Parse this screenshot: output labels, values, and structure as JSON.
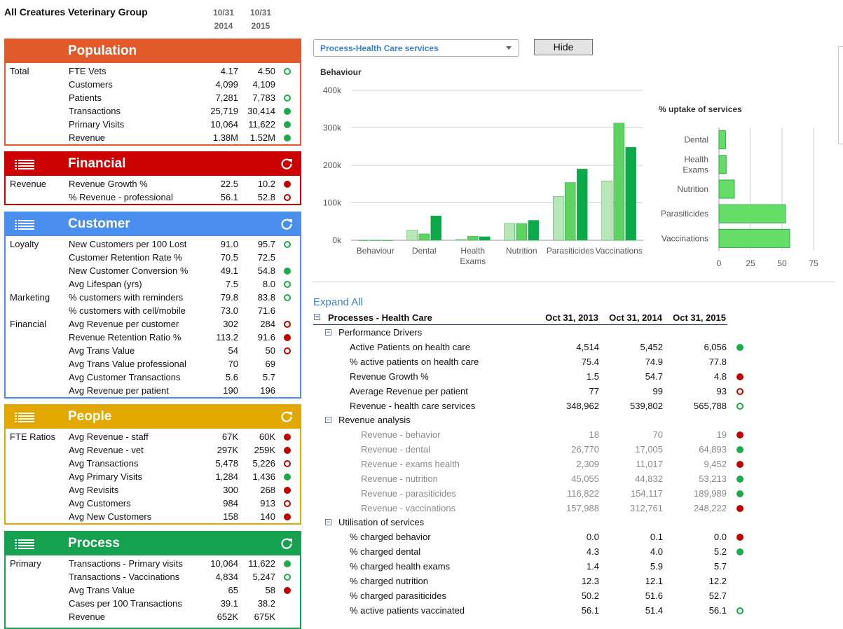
{
  "header": {
    "org_name": "All Creatures Veterinary Group",
    "year_cols": [
      {
        "date": "10/31",
        "year": "2014"
      },
      {
        "date": "10/31",
        "year": "2015"
      }
    ]
  },
  "colors": {
    "population": "#e05a2b",
    "financial": "#cc0000",
    "customer": "#4a8ef0",
    "people": "#e2a800",
    "process": "#15a150",
    "good": "#1aab4b",
    "bad": "#c00000"
  },
  "panels": [
    {
      "key": "population",
      "title": "Population",
      "icons": {
        "menu": false,
        "refresh": false
      },
      "rows": [
        {
          "group": "Total",
          "label": "FTE Vets",
          "v1": "4.17",
          "v2": "4.50",
          "ind": "go"
        },
        {
          "group": "",
          "label": "Customers",
          "v1": "4,099",
          "v2": "4,109",
          "ind": ""
        },
        {
          "group": "",
          "label": "Patients",
          "v1": "7,281",
          "v2": "7,783",
          "ind": "go"
        },
        {
          "group": "",
          "label": "Transactions",
          "v1": "25,719",
          "v2": "30,414",
          "ind": "gf"
        },
        {
          "group": "",
          "label": "Primary Visits",
          "v1": "10,064",
          "v2": "11,622",
          "ind": "gf"
        },
        {
          "group": "",
          "label": "Revenue",
          "v1": "1.38M",
          "v2": "1.52M",
          "ind": "gf"
        }
      ]
    },
    {
      "key": "financial",
      "title": "Financial",
      "icons": {
        "menu": true,
        "refresh": true
      },
      "rows": [
        {
          "group": "Revenue",
          "label": "Revenue Growth %",
          "v1": "22.5",
          "v2": "10.2",
          "ind": "rf"
        },
        {
          "group": "",
          "label": "% Revenue - professional",
          "v1": "56.1",
          "v2": "52.8",
          "ind": "ro"
        }
      ]
    },
    {
      "key": "customer",
      "title": "Customer",
      "icons": {
        "menu": true,
        "refresh": true
      },
      "rows": [
        {
          "group": "Loyalty",
          "label": "New Customers per 100 Lost",
          "v1": "91.0",
          "v2": "95.7",
          "ind": "go"
        },
        {
          "group": "",
          "label": "Customer Retention Rate %",
          "v1": "70.5",
          "v2": "72.5",
          "ind": ""
        },
        {
          "group": "",
          "label": "New Customer Conversion %",
          "v1": "49.1",
          "v2": "54.8",
          "ind": "gf"
        },
        {
          "group": "",
          "label": "Avg Lifespan (yrs)",
          "v1": "7.5",
          "v2": "8.0",
          "ind": "go"
        },
        {
          "group": "Marketing",
          "label": "% customers with reminders",
          "v1": "79.8",
          "v2": "83.8",
          "ind": "go"
        },
        {
          "group": "",
          "label": "% customers with cell/mobile",
          "v1": "73.0",
          "v2": "71.6",
          "ind": ""
        },
        {
          "group": "Financial",
          "label": "Avg Revenue per customer",
          "v1": "302",
          "v2": "284",
          "ind": "ro"
        },
        {
          "group": "",
          "label": "Revenue Retention Ratio %",
          "v1": "113.2",
          "v2": "91.6",
          "ind": "rf"
        },
        {
          "group": "",
          "label": "Avg Trans Value",
          "v1": "54",
          "v2": "50",
          "ind": "ro"
        },
        {
          "group": "",
          "label": "Avg Trans Value professional",
          "v1": "70",
          "v2": "69",
          "ind": ""
        },
        {
          "group": "",
          "label": "Avg Customer Transactions",
          "v1": "5.6",
          "v2": "5.7",
          "ind": ""
        },
        {
          "group": "",
          "label": "Avg Revenue per patient",
          "v1": "190",
          "v2": "196",
          "ind": ""
        }
      ]
    },
    {
      "key": "people",
      "title": "People",
      "icons": {
        "menu": true,
        "refresh": true
      },
      "rows": [
        {
          "group": "FTE Ratios",
          "label": "Avg Revenue - staff",
          "v1": "67K",
          "v2": "60K",
          "ind": "rf"
        },
        {
          "group": "",
          "label": "Avg Revenue - vet",
          "v1": "297K",
          "v2": "259K",
          "ind": "rf"
        },
        {
          "group": "",
          "label": "Avg Transactions",
          "v1": "5,478",
          "v2": "5,226",
          "ind": "ro"
        },
        {
          "group": "",
          "label": "Avg Primary Visits",
          "v1": "1,284",
          "v2": "1,436",
          "ind": "gf"
        },
        {
          "group": "",
          "label": "Avg Revisits",
          "v1": "300",
          "v2": "268",
          "ind": "rf"
        },
        {
          "group": "",
          "label": "Avg Customers",
          "v1": "984",
          "v2": "913",
          "ind": "ro"
        },
        {
          "group": "",
          "label": "Avg New Customers",
          "v1": "158",
          "v2": "140",
          "ind": "rf"
        }
      ]
    },
    {
      "key": "process",
      "title": "Process",
      "icons": {
        "menu": true,
        "refresh": true
      },
      "rows": [
        {
          "group": "Primary",
          "label": "Transactions - Primary visits",
          "v1": "10,064",
          "v2": "11,622",
          "ind": "gf"
        },
        {
          "group": "",
          "label": "Transactions - Vaccinations",
          "v1": "4,834",
          "v2": "5,247",
          "ind": "go"
        },
        {
          "group": "",
          "label": "Avg Trans Value",
          "v1": "65",
          "v2": "58",
          "ind": "rf"
        },
        {
          "group": "",
          "label": "Cases per 100 Transactions",
          "v1": "39.1",
          "v2": "38.2",
          "ind": ""
        },
        {
          "group": "",
          "label": "Revenue",
          "v1": "652K",
          "v2": "675K",
          "ind": ""
        }
      ]
    }
  ],
  "controls": {
    "dropdown_value": "Process-Health Care services",
    "hide_label": "Hide"
  },
  "chart_data": [
    {
      "type": "bar",
      "title": "Behaviour",
      "categories": [
        "Behaviour",
        "Dental",
        "Health Exams",
        "Nutrition",
        "Parasiticides",
        "Vaccinations"
      ],
      "series": [
        {
          "values": [
            18,
            26770,
            2309,
            45055,
            116822,
            157988
          ],
          "color": "#b8e8b8"
        },
        {
          "values": [
            70,
            17005,
            11017,
            44832,
            154117,
            312761
          ],
          "color": "#5fd35f"
        },
        {
          "values": [
            19,
            64893,
            9452,
            53213,
            189989,
            248222
          ],
          "color": "#0aaa4a"
        }
      ],
      "yticks": [
        "0k",
        "100k",
        "200k",
        "300k",
        "400k"
      ],
      "ylim": [
        0,
        400000
      ],
      "grid": true
    },
    {
      "type": "bar",
      "orientation": "horizontal",
      "title": "% uptake of services",
      "categories": [
        "Dental",
        "Health Exams",
        "Nutrition",
        "Parasiticides",
        "Vaccinations"
      ],
      "values": [
        5.2,
        5.7,
        12.2,
        52.7,
        56.1
      ],
      "xticks": [
        "0",
        "25",
        "50",
        "75"
      ],
      "xlim": [
        0,
        75
      ],
      "color": "#66dd66",
      "grid": true
    }
  ],
  "table": {
    "expand_all": "Expand All",
    "title": "Processes - Health Care",
    "columns": [
      "Oct 31, 2013",
      "Oct 31, 2014",
      "Oct 31, 2015"
    ],
    "sections": [
      {
        "title": "Performance Drivers",
        "muted": false,
        "rows": [
          {
            "label": "Active Patients on health care",
            "v": [
              "4,514",
              "5,452",
              "6,056"
            ],
            "ind": "gf"
          },
          {
            "label": "% active patients on health care",
            "v": [
              "75.4",
              "74.9",
              "77.8"
            ],
            "ind": ""
          },
          {
            "label": "Revenue Growth %",
            "v": [
              "1.5",
              "54.7",
              "4.8"
            ],
            "ind": "rf"
          },
          {
            "label": "Average Revenue per patient",
            "v": [
              "77",
              "99",
              "93"
            ],
            "ind": "ro"
          },
          {
            "label": "Revenue - health care services",
            "v": [
              "348,962",
              "539,802",
              "565,788"
            ],
            "ind": "go"
          }
        ]
      },
      {
        "title": "Revenue analysis",
        "muted": true,
        "rows": [
          {
            "label": "Revenue - behavior",
            "v": [
              "18",
              "70",
              "19"
            ],
            "ind": "rf"
          },
          {
            "label": "Revenue - dental",
            "v": [
              "26,770",
              "17,005",
              "64,893"
            ],
            "ind": "gf"
          },
          {
            "label": "Revenue - exams health",
            "v": [
              "2,309",
              "11,017",
              "9,452"
            ],
            "ind": "rf"
          },
          {
            "label": "Revenue - nutrition",
            "v": [
              "45,055",
              "44,832",
              "53,213"
            ],
            "ind": "gf"
          },
          {
            "label": "Revenue - parasiticides",
            "v": [
              "116,822",
              "154,117",
              "189,989"
            ],
            "ind": "gf"
          },
          {
            "label": "Revenue - vaccinations",
            "v": [
              "157,988",
              "312,761",
              "248,222"
            ],
            "ind": "rf"
          }
        ]
      },
      {
        "title": "Utilisation of services",
        "muted": false,
        "rows": [
          {
            "label": "% charged behavior",
            "v": [
              "0.0",
              "0.1",
              "0.0"
            ],
            "ind": "rf"
          },
          {
            "label": "% charged dental",
            "v": [
              "4.3",
              "4.0",
              "5.2"
            ],
            "ind": "gf"
          },
          {
            "label": "% charged health exams",
            "v": [
              "1.4",
              "5.9",
              "5.7"
            ],
            "ind": ""
          },
          {
            "label": "% charged nutrition",
            "v": [
              "12.3",
              "12.1",
              "12.2"
            ],
            "ind": ""
          },
          {
            "label": "% charged parasiticides",
            "v": [
              "50.2",
              "51.6",
              "52.7"
            ],
            "ind": ""
          },
          {
            "label": "% active patients vaccinated",
            "v": [
              "56.1",
              "51.4",
              "56.1"
            ],
            "ind": "go"
          }
        ]
      }
    ]
  }
}
